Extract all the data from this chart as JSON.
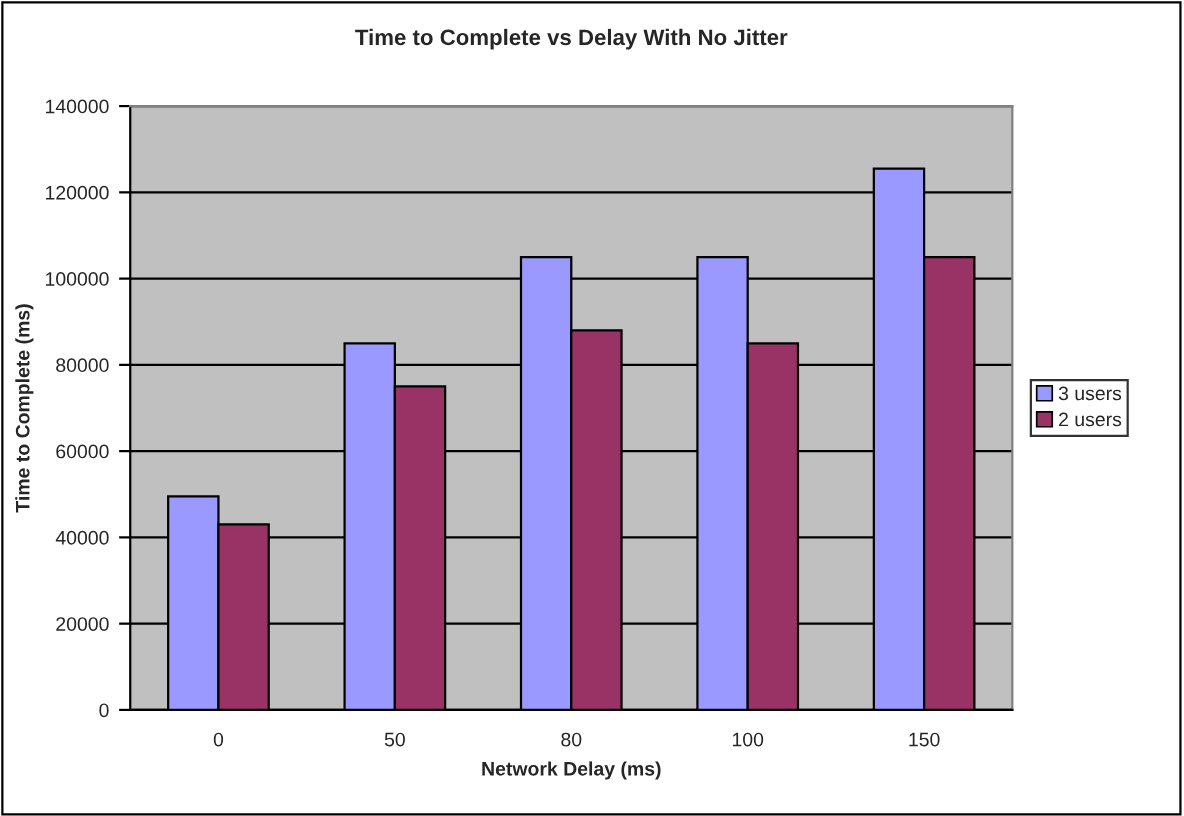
{
  "chart_data": {
    "type": "bar",
    "title": "Time to Complete vs Delay With No Jitter",
    "xlabel": "Network Delay (ms)",
    "ylabel": "Time to Complete (ms)",
    "categories": [
      "0",
      "50",
      "80",
      "100",
      "150"
    ],
    "series": [
      {
        "name": "3 users",
        "color": "#9999ff",
        "values": [
          49500,
          85000,
          105000,
          105000,
          125500
        ]
      },
      {
        "name": "2 users",
        "color": "#993366",
        "values": [
          43000,
          75000,
          88000,
          85000,
          105000
        ]
      }
    ],
    "ylim": [
      0,
      140000
    ],
    "yticks": [
      0,
      20000,
      40000,
      60000,
      80000,
      100000,
      120000,
      140000
    ],
    "grid": "y",
    "legend": "right"
  }
}
